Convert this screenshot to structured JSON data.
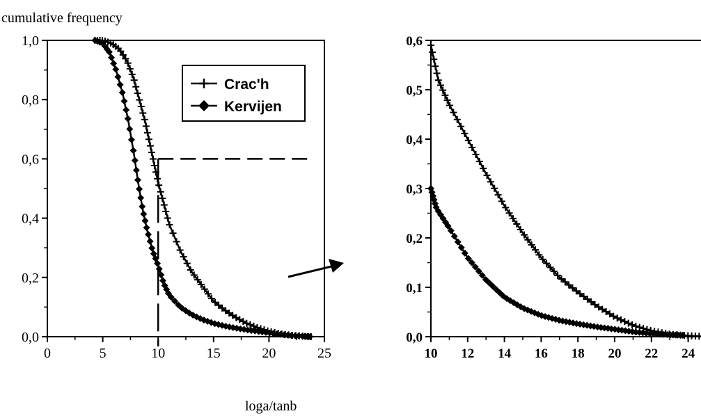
{
  "chart_data": [
    {
      "type": "line",
      "ylabel": "cumulative frequency",
      "xlabel": "loga/tanb",
      "xlim": [
        0,
        25
      ],
      "ylim": [
        0,
        1.0
      ],
      "x_ticks": [
        "0",
        "5",
        "10",
        "15",
        "20",
        "25"
      ],
      "y_ticks": [
        "0,0",
        "0,2",
        "0,4",
        "0,6",
        "0,8",
        "1,0"
      ],
      "legend": {
        "position": "top-right",
        "entries": [
          "Crac'h",
          "Kervijen"
        ]
      },
      "grid": false,
      "series": [
        {
          "name": "Crac'h",
          "marker": "plus",
          "points": [
            [
              4.3,
              1.0
            ],
            [
              5.0,
              1.0
            ],
            [
              5.8,
              0.99
            ],
            [
              6.5,
              0.97
            ],
            [
              7.2,
              0.93
            ],
            [
              7.8,
              0.87
            ],
            [
              8.3,
              0.8
            ],
            [
              8.8,
              0.73
            ],
            [
              9.2,
              0.66
            ],
            [
              9.6,
              0.59
            ],
            [
              10.0,
              0.52
            ],
            [
              10.5,
              0.45
            ],
            [
              11.0,
              0.38
            ],
            [
              12.0,
              0.29
            ],
            [
              13.0,
              0.22
            ],
            [
              14.0,
              0.17
            ],
            [
              15.0,
              0.12
            ],
            [
              16.0,
              0.09
            ],
            [
              17.0,
              0.065
            ],
            [
              18.0,
              0.045
            ],
            [
              19.0,
              0.03
            ],
            [
              20.0,
              0.018
            ],
            [
              21.0,
              0.01
            ],
            [
              22.0,
              0.005
            ],
            [
              23.0,
              0.002
            ],
            [
              23.8,
              0.0
            ]
          ]
        },
        {
          "name": "Kervijen",
          "marker": "diamond",
          "points": [
            [
              4.3,
              1.0
            ],
            [
              5.0,
              0.99
            ],
            [
              5.6,
              0.96
            ],
            [
              6.2,
              0.9
            ],
            [
              6.8,
              0.82
            ],
            [
              7.3,
              0.73
            ],
            [
              7.8,
              0.62
            ],
            [
              8.2,
              0.52
            ],
            [
              8.6,
              0.43
            ],
            [
              9.0,
              0.36
            ],
            [
              9.5,
              0.29
            ],
            [
              10.0,
              0.24
            ],
            [
              10.5,
              0.18
            ],
            [
              11.0,
              0.14
            ],
            [
              12.0,
              0.1
            ],
            [
              13.0,
              0.075
            ],
            [
              14.0,
              0.058
            ],
            [
              15.0,
              0.045
            ],
            [
              16.0,
              0.036
            ],
            [
              17.0,
              0.029
            ],
            [
              18.0,
              0.023
            ],
            [
              19.0,
              0.018
            ],
            [
              20.0,
              0.013
            ],
            [
              21.0,
              0.008
            ],
            [
              22.0,
              0.004
            ],
            [
              23.0,
              0.002
            ],
            [
              23.7,
              0.0
            ]
          ]
        }
      ],
      "annotations": [
        "dashed line at y=0,6 from x=10 to right edge",
        "dashed line at x=10 from bottom to y=0,6"
      ]
    },
    {
      "type": "line",
      "xlim": [
        10,
        25
      ],
      "ylim": [
        0,
        0.6
      ],
      "x_ticks": [
        "10",
        "12",
        "14",
        "16",
        "18",
        "20",
        "22",
        "24"
      ],
      "y_ticks": [
        "0,0",
        "0,1",
        "0,2",
        "0,3",
        "0,4",
        "0,5",
        "0,6"
      ],
      "grid": false,
      "series": [
        {
          "name": "Crac'h",
          "marker": "plus",
          "points": [
            [
              10.0,
              0.59
            ],
            [
              10.4,
              0.52
            ],
            [
              11.0,
              0.47
            ],
            [
              12.0,
              0.4
            ],
            [
              13.0,
              0.33
            ],
            [
              14.0,
              0.265
            ],
            [
              15.0,
              0.21
            ],
            [
              16.0,
              0.16
            ],
            [
              17.0,
              0.12
            ],
            [
              18.0,
              0.09
            ],
            [
              19.0,
              0.063
            ],
            [
              20.0,
              0.04
            ],
            [
              21.0,
              0.023
            ],
            [
              22.0,
              0.012
            ],
            [
              23.0,
              0.005
            ],
            [
              24.0,
              0.002
            ],
            [
              25.0,
              0.0
            ]
          ]
        },
        {
          "name": "Kervijen",
          "marker": "diamond",
          "points": [
            [
              10.0,
              0.3
            ],
            [
              10.3,
              0.26
            ],
            [
              11.0,
              0.22
            ],
            [
              12.0,
              0.16
            ],
            [
              13.0,
              0.115
            ],
            [
              14.0,
              0.08
            ],
            [
              15.0,
              0.058
            ],
            [
              16.0,
              0.043
            ],
            [
              17.0,
              0.033
            ],
            [
              18.0,
              0.026
            ],
            [
              19.0,
              0.02
            ],
            [
              20.0,
              0.015
            ],
            [
              21.0,
              0.01
            ],
            [
              22.0,
              0.006
            ],
            [
              23.0,
              0.004
            ],
            [
              23.7,
              0.003
            ]
          ]
        }
      ]
    }
  ]
}
